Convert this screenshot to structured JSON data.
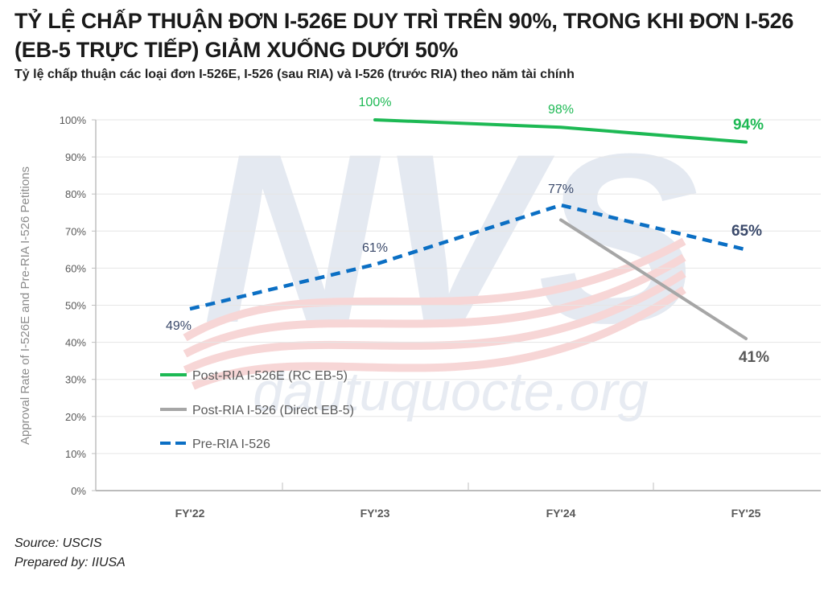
{
  "header": {
    "title": "TỶ LỆ CHẤP THUẬN ĐƠN I-526E DUY TRÌ TRÊN 90%, TRONG KHI ĐƠN I-526 (EB-5 TRỰC TIẾP) GIẢM XUỐNG DƯỚI 50%",
    "subtitle": "Tỷ lệ chấp thuận các loại đơn I-526E, I-526 (sau RIA) và I-526 (trước RIA) theo năm tài chính"
  },
  "footer": {
    "source": "Source: USCIS",
    "prepared_by": "Prepared by: IIUSA"
  },
  "watermark": {
    "logo": "NVS",
    "text": "dautuquocte.org"
  },
  "chart_data": {
    "type": "line",
    "title": "Tỷ lệ chấp thuận các loại đơn I-526E, I-526 (sau RIA) và I-526 (trước RIA) theo năm tài chính",
    "xlabel": "",
    "ylabel": "Approval Rate of I-526E and Pre-RIA I-526 Petitions",
    "categories": [
      "FY'22",
      "FY'23",
      "FY'24",
      "FY'25"
    ],
    "yticks": [
      "0%",
      "10%",
      "20%",
      "30%",
      "40%",
      "50%",
      "60%",
      "70%",
      "80%",
      "90%",
      "100%"
    ],
    "ylim": [
      0,
      100
    ],
    "grid": true,
    "legend_position": "inside-lower-left",
    "series": [
      {
        "name": "Post-RIA I-526E (RC EB-5)",
        "color": "#1db954",
        "style": "solid",
        "values": [
          null,
          100,
          98,
          94
        ],
        "labels": [
          "",
          "100%",
          "98%",
          "94%"
        ]
      },
      {
        "name": "Post-RIA I-526 (Direct EB-5)",
        "color": "#a6a6a6",
        "style": "solid",
        "values": [
          null,
          null,
          73,
          41
        ],
        "labels": [
          "",
          "",
          "",
          "41%"
        ]
      },
      {
        "name": "Pre-RIA I-526",
        "color": "#0b6fc4",
        "style": "dashed",
        "values": [
          49,
          61,
          77,
          65
        ],
        "labels": [
          "49%",
          "61%",
          "77%",
          "65%"
        ]
      }
    ]
  }
}
